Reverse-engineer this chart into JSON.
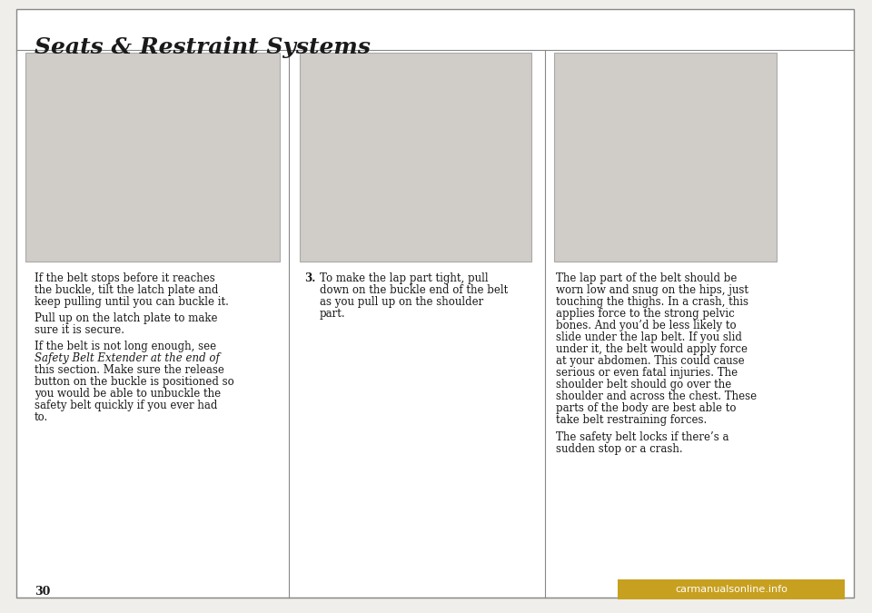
{
  "bg_color": "#f0eeea",
  "page_bg": "#f0eeea",
  "border_color": "#888888",
  "title": "Seats & Restraint Systems",
  "title_color": "#1a1a1a",
  "title_fontsize": 18,
  "page_number": "30",
  "col1_text_paragraphs": [
    "If the belt stops before it reaches the buckle, tilt the latch plate and keep pulling until you can buckle it.",
    "Pull up on the latch plate to make sure it is secure.",
    "If the belt is not long enough, see {italic}Safety Belt Extender{/italic} at the end of this section. Make sure the release button on the buckle is positioned so you would be able to unbuckle the safety belt quickly if you ever had to."
  ],
  "col2_label": "3.",
  "col2_text": "To make the lap part tight, pull down on the buckle end of the belt as you pull up on the shoulder part.",
  "col3_text": "The lap part of the belt should be worn low and snug on the hips, just touching the thighs. In a crash, this applies force to the strong pelvic bones. And you’d be less likely to slide under the lap belt. If you slid under it, the belt would apply force at your abdomen. This could cause serious or even fatal injuries. The shoulder belt should go over the shoulder and across the chest. These parts of the body are best able to take belt restraining forces.\n\nThe safety belt locks if there’s a sudden stop or a crash.",
  "watermark": "carmanualsonline.info",
  "watermark_bg": "#c8a020",
  "watermark_color": "#ffffff"
}
